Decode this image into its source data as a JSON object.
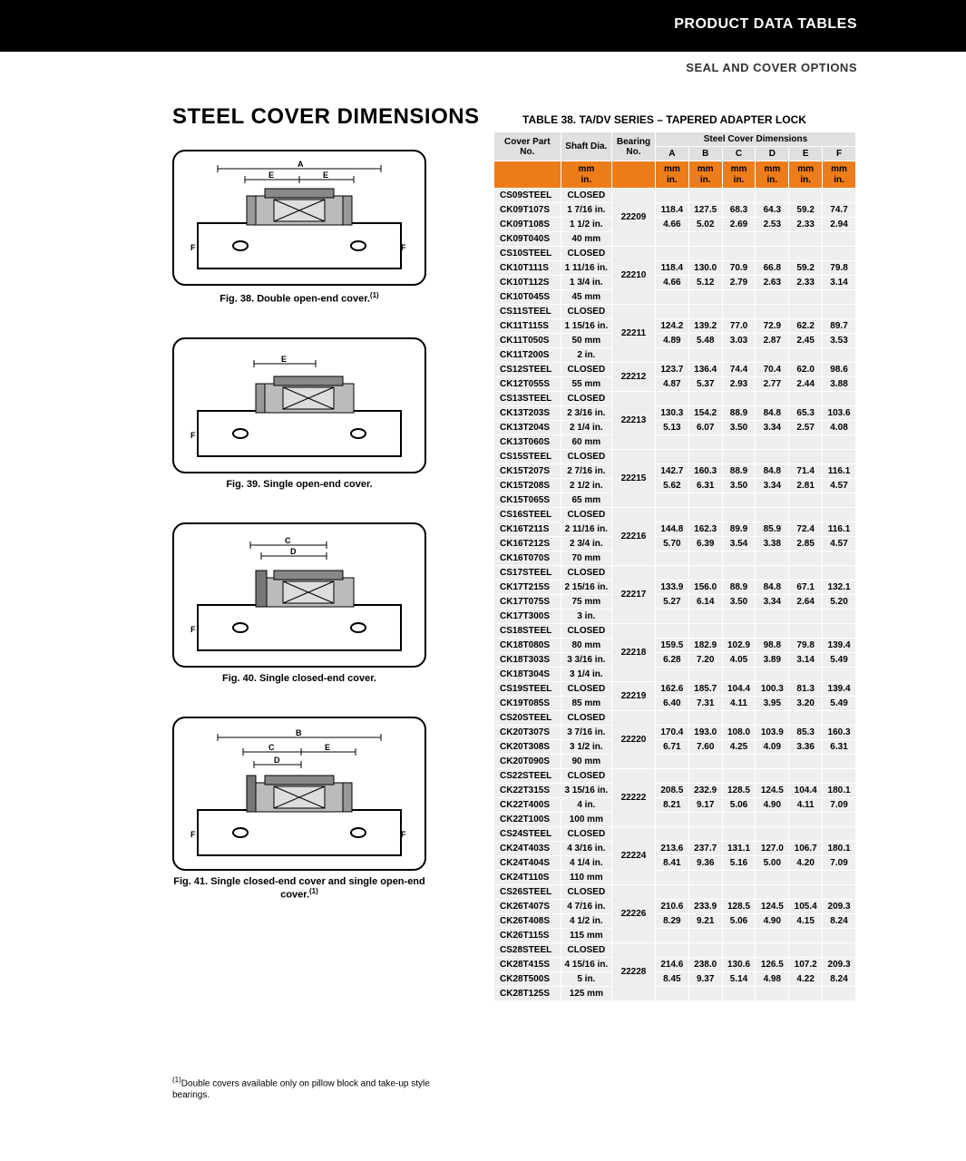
{
  "header": {
    "title": "PRODUCT DATA TABLES",
    "subtitle": "SEAL AND COVER OPTIONS"
  },
  "main_title": "STEEL COVER DIMENSIONS",
  "table_title": "TABLE 38. TA/DV SERIES – TAPERED ADAPTER LOCK",
  "figures": [
    {
      "caption": "Fig. 38. Double open-end cover.",
      "sup": "(1)"
    },
    {
      "caption": "Fig. 39. Single open-end cover.",
      "sup": ""
    },
    {
      "caption": "Fig. 40. Single closed-end cover.",
      "sup": ""
    },
    {
      "caption": "Fig. 41. Single closed-end cover and single open-end cover.",
      "sup": "(1)"
    }
  ],
  "footnote": "Double covers available only on pillow block and take-up style bearings.",
  "footnote_sup": "(1)",
  "table": {
    "columns": {
      "cover_part": "Cover Part No.",
      "shaft": "Shaft Dia.",
      "bearing": "Bearing No.",
      "scd_title": "Steel Cover Dimensions",
      "dims": [
        "A",
        "B",
        "C",
        "D",
        "E",
        "F"
      ]
    },
    "unit_rows": {
      "top": "mm",
      "bot": "in."
    },
    "groups": [
      {
        "bearing": "22209",
        "rows": [
          {
            "part": "CS09STEEL",
            "shaft": "CLOSED"
          },
          {
            "part": "CK09T107S",
            "shaft": "1 7/16 in."
          },
          {
            "part": "CK09T108S",
            "shaft": "1 1/2 in."
          },
          {
            "part": "CK09T040S",
            "shaft": "40 mm"
          }
        ],
        "mm": [
          "118.4",
          "127.5",
          "68.3",
          "64.3",
          "59.2",
          "74.7"
        ],
        "in": [
          "4.66",
          "5.02",
          "2.69",
          "2.53",
          "2.33",
          "2.94"
        ]
      },
      {
        "bearing": "22210",
        "rows": [
          {
            "part": "CS10STEEL",
            "shaft": "CLOSED"
          },
          {
            "part": "CK10T111S",
            "shaft": "1 11/16 in."
          },
          {
            "part": "CK10T112S",
            "shaft": "1 3/4 in."
          },
          {
            "part": "CK10T045S",
            "shaft": "45 mm"
          }
        ],
        "mm": [
          "118.4",
          "130.0",
          "70.9",
          "66.8",
          "59.2",
          "79.8"
        ],
        "in": [
          "4.66",
          "5.12",
          "2.79",
          "2.63",
          "2.33",
          "3.14"
        ]
      },
      {
        "bearing": "22211",
        "rows": [
          {
            "part": "CS11STEEL",
            "shaft": "CLOSED"
          },
          {
            "part": "CK11T115S",
            "shaft": "1 15/16 in."
          },
          {
            "part": "CK11T050S",
            "shaft": "50 mm"
          },
          {
            "part": "CK11T200S",
            "shaft": "2 in."
          }
        ],
        "mm": [
          "124.2",
          "139.2",
          "77.0",
          "72.9",
          "62.2",
          "89.7"
        ],
        "in": [
          "4.89",
          "5.48",
          "3.03",
          "2.87",
          "2.45",
          "3.53"
        ]
      },
      {
        "bearing": "22212",
        "rows": [
          {
            "part": "CS12STEEL",
            "shaft": "CLOSED"
          },
          {
            "part": "CK12T055S",
            "shaft": "55 mm"
          }
        ],
        "mm": [
          "123.7",
          "136.4",
          "74.4",
          "70.4",
          "62.0",
          "98.6"
        ],
        "in": [
          "4.87",
          "5.37",
          "2.93",
          "2.77",
          "2.44",
          "3.88"
        ]
      },
      {
        "bearing": "22213",
        "rows": [
          {
            "part": "CS13STEEL",
            "shaft": "CLOSED"
          },
          {
            "part": "CK13T203S",
            "shaft": "2 3/16 in."
          },
          {
            "part": "CK13T204S",
            "shaft": "2 1/4 in."
          },
          {
            "part": "CK13T060S",
            "shaft": "60 mm"
          }
        ],
        "mm": [
          "130.3",
          "154.2",
          "88.9",
          "84.8",
          "65.3",
          "103.6"
        ],
        "in": [
          "5.13",
          "6.07",
          "3.50",
          "3.34",
          "2.57",
          "4.08"
        ]
      },
      {
        "bearing": "22215",
        "rows": [
          {
            "part": "CS15STEEL",
            "shaft": "CLOSED"
          },
          {
            "part": "CK15T207S",
            "shaft": "2 7/16 in."
          },
          {
            "part": "CK15T208S",
            "shaft": "2 1/2 in."
          },
          {
            "part": "CK15T065S",
            "shaft": "65 mm"
          }
        ],
        "mm": [
          "142.7",
          "160.3",
          "88.9",
          "84.8",
          "71.4",
          "116.1"
        ],
        "in": [
          "5.62",
          "6.31",
          "3.50",
          "3.34",
          "2.81",
          "4.57"
        ]
      },
      {
        "bearing": "22216",
        "rows": [
          {
            "part": "CS16STEEL",
            "shaft": "CLOSED"
          },
          {
            "part": "CK16T211S",
            "shaft": "2 11/16 in."
          },
          {
            "part": "CK16T212S",
            "shaft": "2 3/4 in."
          },
          {
            "part": "CK16T070S",
            "shaft": "70 mm"
          }
        ],
        "mm": [
          "144.8",
          "162.3",
          "89.9",
          "85.9",
          "72.4",
          "116.1"
        ],
        "in": [
          "5.70",
          "6.39",
          "3.54",
          "3.38",
          "2.85",
          "4.57"
        ]
      },
      {
        "bearing": "22217",
        "rows": [
          {
            "part": "CS17STEEL",
            "shaft": "CLOSED"
          },
          {
            "part": "CK17T215S",
            "shaft": "2 15/16 in."
          },
          {
            "part": "CK17T075S",
            "shaft": "75 mm"
          },
          {
            "part": "CK17T300S",
            "shaft": "3 in."
          }
        ],
        "mm": [
          "133.9",
          "156.0",
          "88.9",
          "84.8",
          "67.1",
          "132.1"
        ],
        "in": [
          "5.27",
          "6.14",
          "3.50",
          "3.34",
          "2.64",
          "5.20"
        ]
      },
      {
        "bearing": "22218",
        "rows": [
          {
            "part": "CS18STEEL",
            "shaft": "CLOSED"
          },
          {
            "part": "CK18T080S",
            "shaft": "80 mm"
          },
          {
            "part": "CK18T303S",
            "shaft": "3 3/16 in."
          },
          {
            "part": "CK18T304S",
            "shaft": "3 1/4 in."
          }
        ],
        "mm": [
          "159.5",
          "182.9",
          "102.9",
          "98.8",
          "79.8",
          "139.4"
        ],
        "in": [
          "6.28",
          "7.20",
          "4.05",
          "3.89",
          "3.14",
          "5.49"
        ]
      },
      {
        "bearing": "22219",
        "rows": [
          {
            "part": "CS19STEEL",
            "shaft": "CLOSED"
          },
          {
            "part": "CK19T085S",
            "shaft": "85 mm"
          }
        ],
        "mm": [
          "162.6",
          "185.7",
          "104.4",
          "100.3",
          "81.3",
          "139.4"
        ],
        "in": [
          "6.40",
          "7.31",
          "4.11",
          "3.95",
          "3.20",
          "5.49"
        ]
      },
      {
        "bearing": "22220",
        "rows": [
          {
            "part": "CS20STEEL",
            "shaft": "CLOSED"
          },
          {
            "part": "CK20T307S",
            "shaft": "3 7/16 in."
          },
          {
            "part": "CK20T308S",
            "shaft": "3 1/2 in."
          },
          {
            "part": "CK20T090S",
            "shaft": "90 mm"
          }
        ],
        "mm": [
          "170.4",
          "193.0",
          "108.0",
          "103.9",
          "85.3",
          "160.3"
        ],
        "in": [
          "6.71",
          "7.60",
          "4.25",
          "4.09",
          "3.36",
          "6.31"
        ]
      },
      {
        "bearing": "22222",
        "rows": [
          {
            "part": "CS22STEEL",
            "shaft": "CLOSED"
          },
          {
            "part": "CK22T315S",
            "shaft": "3 15/16 in."
          },
          {
            "part": "CK22T400S",
            "shaft": "4 in."
          },
          {
            "part": "CK22T100S",
            "shaft": "100 mm"
          }
        ],
        "mm": [
          "208.5",
          "232.9",
          "128.5",
          "124.5",
          "104.4",
          "180.1"
        ],
        "in": [
          "8.21",
          "9.17",
          "5.06",
          "4.90",
          "4.11",
          "7.09"
        ]
      },
      {
        "bearing": "22224",
        "rows": [
          {
            "part": "CS24STEEL",
            "shaft": "CLOSED"
          },
          {
            "part": "CK24T403S",
            "shaft": "4 3/16 in."
          },
          {
            "part": "CK24T404S",
            "shaft": "4 1/4 in."
          },
          {
            "part": "CK24T110S",
            "shaft": "110 mm"
          }
        ],
        "mm": [
          "213.6",
          "237.7",
          "131.1",
          "127.0",
          "106.7",
          "180.1"
        ],
        "in": [
          "8.41",
          "9.36",
          "5.16",
          "5.00",
          "4.20",
          "7.09"
        ]
      },
      {
        "bearing": "22226",
        "rows": [
          {
            "part": "CS26STEEL",
            "shaft": "CLOSED"
          },
          {
            "part": "CK26T407S",
            "shaft": "4 7/16 in."
          },
          {
            "part": "CK26T408S",
            "shaft": "4 1/2 in."
          },
          {
            "part": "CK26T115S",
            "shaft": "115 mm"
          }
        ],
        "mm": [
          "210.6",
          "233.9",
          "128.5",
          "124.5",
          "105.4",
          "209.3"
        ],
        "in": [
          "8.29",
          "9.21",
          "5.06",
          "4.90",
          "4.15",
          "8.24"
        ]
      },
      {
        "bearing": "22228",
        "rows": [
          {
            "part": "CS28STEEL",
            "shaft": "CLOSED"
          },
          {
            "part": "CK28T415S",
            "shaft": "4 15/16 in."
          },
          {
            "part": "CK28T500S",
            "shaft": "5 in."
          },
          {
            "part": "CK28T125S",
            "shaft": "125 mm"
          }
        ],
        "mm": [
          "214.6",
          "238.0",
          "130.6",
          "126.5",
          "107.2",
          "209.3"
        ],
        "in": [
          "8.45",
          "9.37",
          "5.14",
          "4.98",
          "4.22",
          "8.24"
        ]
      }
    ]
  },
  "colors": {
    "black": "#000000",
    "orange": "#ed7d1a",
    "grey_light": "#eeeeee",
    "grey_mid": "#e0e0e0",
    "white": "#ffffff"
  }
}
